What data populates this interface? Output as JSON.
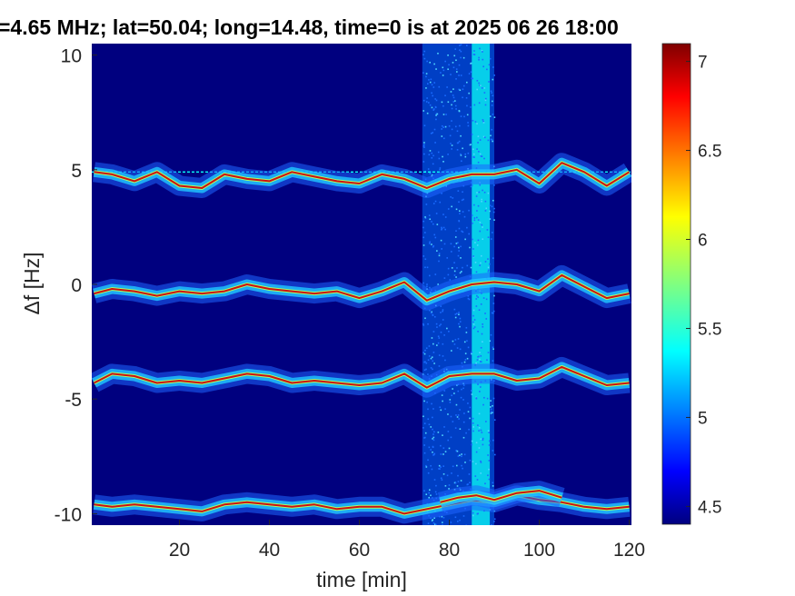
{
  "chart_data": {
    "type": "heatmap",
    "title": "=4.65 MHz;  lat=50.04; long=14.48, time=0 is at 2025 06 26 18:00",
    "xlabel": "time [min]",
    "ylabel": "Δf [Hz]",
    "xlim": [
      0.5,
      120.5
    ],
    "ylim": [
      -10.5,
      10.5
    ],
    "xticks": [
      20,
      40,
      60,
      80,
      100,
      120
    ],
    "yticks": [
      10,
      5,
      0,
      -5,
      -10
    ],
    "ytick_labels": [
      "10",
      "5",
      "0",
      "-5",
      "-10"
    ],
    "colorbar": {
      "range": [
        4.4,
        7.1
      ],
      "ticks": [
        4.5,
        5,
        5.5,
        6,
        6.5,
        7
      ],
      "tick_labels": [
        "4.5",
        "5",
        "5.5",
        "6",
        "6.5",
        "7"
      ]
    },
    "background_level": 4.4,
    "carrier_line": {
      "df": 4.9,
      "level": 5.4
    },
    "broadband_noise": [
      {
        "t_start": 74,
        "t_end": 90,
        "level": 5.0
      },
      {
        "t_start": 85,
        "t_end": 89,
        "level": 5.4
      }
    ],
    "traces": [
      {
        "name": "band_+5",
        "t": [
          1,
          5,
          10,
          15,
          20,
          25,
          30,
          35,
          40,
          45,
          50,
          55,
          60,
          65,
          70,
          75,
          80,
          85,
          90,
          95,
          100,
          105,
          110,
          115,
          120
        ],
        "df": [
          4.9,
          4.8,
          4.5,
          4.9,
          4.3,
          4.2,
          4.8,
          4.6,
          4.5,
          4.9,
          4.7,
          4.5,
          4.4,
          4.8,
          4.6,
          4.2,
          4.6,
          4.8,
          4.8,
          5.0,
          4.4,
          5.3,
          4.9,
          4.3,
          4.9
        ]
      },
      {
        "name": "band_0",
        "t": [
          1,
          5,
          10,
          15,
          20,
          25,
          30,
          35,
          40,
          45,
          50,
          55,
          60,
          65,
          70,
          75,
          80,
          85,
          90,
          95,
          100,
          105,
          110,
          115,
          120
        ],
        "df": [
          -0.4,
          -0.2,
          -0.3,
          -0.5,
          -0.3,
          -0.4,
          -0.3,
          0.0,
          -0.2,
          -0.3,
          -0.4,
          -0.3,
          -0.6,
          -0.3,
          0.1,
          -0.7,
          -0.3,
          0.0,
          0.1,
          0.0,
          -0.3,
          0.4,
          -0.1,
          -0.6,
          -0.4
        ]
      },
      {
        "name": "band_-4",
        "t": [
          1,
          5,
          10,
          15,
          20,
          25,
          30,
          35,
          40,
          45,
          50,
          55,
          60,
          65,
          70,
          75,
          80,
          85,
          90,
          95,
          100,
          105,
          110,
          115,
          120
        ],
        "df": [
          -4.3,
          -3.9,
          -4.0,
          -4.3,
          -4.2,
          -4.3,
          -4.1,
          -3.9,
          -4.0,
          -4.3,
          -4.2,
          -4.3,
          -4.4,
          -4.3,
          -3.9,
          -4.5,
          -4.0,
          -3.9,
          -3.9,
          -4.2,
          -4.1,
          -3.6,
          -4.0,
          -4.4,
          -4.3
        ]
      },
      {
        "name": "band_-9.5",
        "t": [
          1,
          5,
          10,
          15,
          20,
          25,
          30,
          35,
          40,
          45,
          50,
          55,
          60,
          65,
          70,
          75,
          80,
          85,
          90,
          95,
          100,
          105,
          110,
          115,
          120
        ],
        "df": [
          -9.6,
          -9.7,
          -9.6,
          -9.7,
          -9.8,
          -9.9,
          -9.6,
          -9.5,
          -9.6,
          -9.7,
          -9.6,
          -9.8,
          -9.7,
          -9.7,
          -10.0,
          -9.8,
          -9.6,
          -9.4,
          -9.5,
          -9.2,
          -9.4,
          -9.5,
          -9.7,
          -9.8,
          -9.7
        ]
      },
      {
        "name": "band_-9.5_extra",
        "t": [
          78,
          82,
          86,
          90,
          95,
          100,
          105
        ],
        "df": [
          -9.5,
          -9.3,
          -9.2,
          -9.4,
          -9.1,
          -9.0,
          -9.3
        ]
      }
    ]
  }
}
